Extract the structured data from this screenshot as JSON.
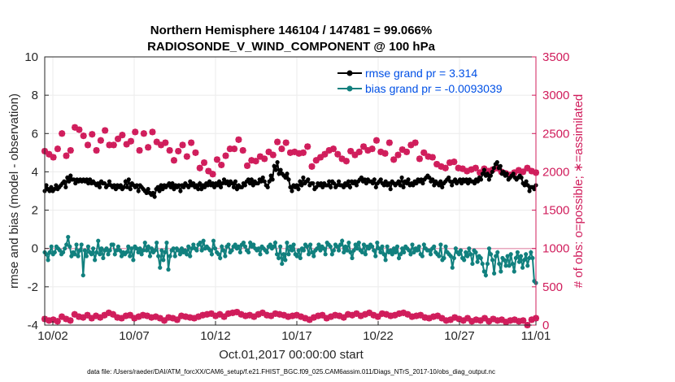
{
  "colors": {
    "rmse": "#000000",
    "bias": "#11807e",
    "obs": "#d01c5b",
    "legend_text": "#0050e6",
    "zero_line": "#e8a6bd"
  },
  "chart_data": {
    "type": "line",
    "title": "Northern Hemisphere 146104 / 147481 = 99.066%",
    "subtitle": "RADIOSONDE_V_WIND_COMPONENT @ 100 hPa",
    "xlabel": "Oct.01,2017 00:00:00 start",
    "ylabel": "rmse and bias (model - observation)",
    "y2label": "# of obs: o=possible; ∗=assimilated",
    "xlim": [
      0.5,
      30.7
    ],
    "ylim": [
      -4,
      10
    ],
    "y2lim": [
      0,
      3500
    ],
    "x_ticks": [
      {
        "value": 1,
        "label": "10/02"
      },
      {
        "value": 6,
        "label": "10/07"
      },
      {
        "value": 11,
        "label": "10/12"
      },
      {
        "value": 16,
        "label": "10/17"
      },
      {
        "value": 21,
        "label": "10/22"
      },
      {
        "value": 26,
        "label": "10/27"
      },
      {
        "value": 31,
        "label": "11/01"
      }
    ],
    "y_ticks": [
      -4,
      -2,
      0,
      2,
      4,
      6,
      8,
      10
    ],
    "y2_ticks": [
      0,
      500,
      1000,
      1500,
      2000,
      2500,
      3000,
      3500
    ],
    "legend": {
      "rmse": "rmse grand pr = 3.314",
      "bias": "bias grand pr = -0.0093039"
    },
    "footer": "data file: /Users/raeder/DAI/ATM_forcXX/CAM6_setup/f.e21.FHIST_BGC.f09_025.CAM6assim.011/Diags_NTrS_2017-10/obs_diag_output.nc",
    "x_start": 0.5,
    "x_step": 0.25,
    "series": [
      {
        "name": "rmse",
        "values": [
          3.0,
          3.3,
          3.1,
          3.0,
          3.2,
          3.0,
          3.1,
          3.3,
          3.1,
          3.2,
          3.3,
          3.4,
          3.5,
          3.2,
          3.7,
          3.5,
          3.8,
          3.6,
          3.6,
          3.4,
          3.6,
          3.5,
          3.6,
          3.5,
          3.6,
          3.5,
          3.6,
          3.4,
          3.6,
          3.4,
          3.5,
          3.4,
          3.3,
          3.4,
          3.2,
          3.5,
          3.4,
          3.4,
          3.2,
          3.3,
          3.5,
          3.3,
          3.2,
          3.3,
          3.1,
          3.3,
          3.2,
          3.3,
          3.1,
          3.2,
          3.5,
          3.2,
          3.6,
          3.1,
          3.4,
          3.3,
          3.2,
          3.3,
          3.0,
          3.3,
          3.2,
          3.1,
          3.0,
          2.9,
          3.1,
          2.9,
          2.8,
          2.9,
          2.7,
          3.1,
          3.2,
          3.0,
          3.3,
          3.1,
          3.3,
          3.2,
          3.3,
          3.4,
          3.2,
          3.4,
          3.1,
          3.3,
          3.2,
          3.3,
          3.0,
          3.3,
          3.2,
          3.4,
          3.3,
          3.2,
          3.5,
          3.3,
          3.4,
          3.2,
          3.3,
          3.1,
          3.4,
          3.1,
          3.3,
          3.2,
          3.4,
          3.3,
          3.5,
          3.3,
          3.4,
          3.2,
          3.4,
          3.3,
          3.5,
          3.2,
          3.4,
          3.6,
          3.4,
          3.5,
          3.3,
          3.5,
          3.4,
          3.2,
          3.5,
          3.1,
          3.3,
          3.2,
          3.2,
          3.4,
          3.3,
          3.5,
          3.6,
          3.4,
          3.6,
          3.3,
          3.5,
          3.4,
          3.4,
          3.6,
          3.5,
          3.7,
          3.5,
          3.3,
          3.2,
          3.5,
          3.8,
          3.6,
          4.3,
          4.1,
          4.5,
          3.9,
          4.1,
          3.9,
          3.8,
          3.7,
          3.9,
          3.6,
          3.2,
          3.0,
          3.3,
          3.2,
          3.3,
          3.1,
          3.5,
          3.3,
          3.7,
          3.4,
          3.5,
          3.6,
          3.3,
          3.4,
          3.4,
          3.1,
          3.2,
          3.4,
          3.3,
          3.4,
          3.2,
          3.4,
          3.3,
          3.3,
          3.5,
          3.2,
          3.5,
          3.4,
          3.2,
          3.3,
          3.5,
          3.3,
          3.3,
          3.2,
          3.4,
          3.3,
          3.5,
          3.2,
          3.5,
          3.4,
          3.5,
          3.3,
          3.5,
          3.6,
          3.7,
          3.5,
          3.6,
          3.4,
          3.6,
          3.5,
          3.5,
          3.4,
          3.6,
          3.2,
          3.4,
          3.5,
          3.6,
          3.4,
          3.3,
          3.5,
          3.3,
          3.4,
          3.1,
          3.5,
          3.4,
          3.3,
          3.4,
          3.5,
          3.3,
          3.7,
          3.2,
          3.5,
          3.4,
          3.6,
          3.3,
          3.4,
          3.3,
          3.5,
          3.4,
          3.6,
          3.5,
          3.6,
          3.4,
          3.6,
          3.7,
          3.8,
          3.7,
          3.5,
          3.6,
          3.3,
          3.5,
          3.4,
          3.3,
          3.5,
          3.2,
          3.4,
          3.5,
          3.6,
          3.7,
          3.5,
          3.3,
          3.5,
          3.6,
          3.4,
          3.5,
          3.6,
          3.4,
          3.6,
          3.5,
          3.6,
          3.4,
          3.6,
          3.5,
          3.5,
          3.4,
          3.6,
          3.5,
          3.7,
          3.6,
          3.9,
          4.1,
          3.8,
          3.9,
          3.6,
          3.8,
          4.0,
          4.2,
          4.4,
          4.5,
          4.2,
          4.3,
          3.9,
          4.0,
          3.8,
          3.9,
          3.6,
          3.7,
          3.8,
          3.9,
          3.7,
          3.6,
          3.7,
          3.8,
          3.7,
          3.4,
          3.3,
          3.5,
          3.3,
          3.0,
          3.2,
          3.2,
          3.1,
          3.3
        ]
      },
      {
        "name": "bias",
        "values": [
          -0.2,
          -0.3,
          -0.6,
          -0.2,
          0.1,
          -0.3,
          -0.2,
          0.1,
          0.0,
          -0.1,
          -0.3,
          -0.2,
          0.0,
          0.2,
          0.6,
          0.1,
          -0.4,
          -0.2,
          -0.3,
          0.2,
          -0.4,
          -0.1,
          0.2,
          -1.4,
          -0.1,
          -0.4,
          0.1,
          -0.2,
          -0.3,
          0.0,
          -0.6,
          -0.2,
          0.4,
          -0.3,
          0.0,
          -0.5,
          -0.1,
          0.0,
          -0.3,
          -0.1,
          0.2,
          0.2,
          -0.3,
          -0.1,
          0.1,
          -0.1,
          -0.4,
          -0.2,
          -0.3,
          -0.2,
          0.1,
          -0.4,
          0.0,
          -0.6,
          0.1,
          0.0,
          -0.2,
          0.0,
          -0.3,
          -0.1,
          0.3,
          -0.1,
          0.1,
          -0.4,
          0.0,
          -0.2,
          -0.1,
          0.3,
          -0.4,
          -1.0,
          -0.1,
          -0.6,
          -0.2,
          0.3,
          -1.1,
          -0.4,
          -0.1,
          0.0,
          -0.4,
          0.0,
          -0.1,
          -0.3,
          0.0,
          -0.2,
          -0.1,
          -0.3,
          0.1,
          -0.4,
          0.0,
          0.2,
          0.0,
          -0.1,
          0.2,
          0.3,
          -0.1,
          0.4,
          0.0,
          0.1,
          0.0,
          -0.1,
          -0.3,
          0.4,
          0.0,
          -0.2,
          -0.3,
          -0.5,
          0.1,
          -0.1,
          -0.4,
          0.1,
          0.2,
          -0.2,
          -0.1,
          0.1,
          0.2,
          0.0,
          0.1,
          -0.2,
          0.2,
          0.3,
          0.1,
          -0.1,
          -0.2,
          0.3,
          0.1,
          0.2,
          0.0,
          -0.1,
          0.0,
          -0.3,
          0.1,
          0.0,
          -0.1,
          -0.2,
          0.1,
          0.2,
          0.0,
          0.1,
          0.3,
          -0.3,
          -0.5,
          0.1,
          -0.8,
          -0.3,
          -0.6,
          0.3,
          -0.3,
          0.1,
          -0.1,
          0.2,
          -0.3,
          -0.4,
          -0.1,
          -0.5,
          0.0,
          -0.1,
          0.2,
          0.1,
          -0.3,
          0.2,
          -0.2,
          -0.4,
          -0.1,
          0.0,
          0.2,
          -0.1,
          0.1,
          0.0,
          -0.3,
          0.3,
          0.2,
          0.1,
          -0.3,
          -0.1,
          0.2,
          0.1,
          -0.1,
          0.2,
          0.4,
          -0.2,
          0.1,
          -0.1,
          0.3,
          -0.2,
          -0.5,
          -0.1,
          0.2,
          0.0,
          0.3,
          -0.1,
          -0.2,
          0.2,
          -0.3,
          0.1,
          0.0,
          0.2,
          0.1,
          -0.1,
          -0.4,
          0.3,
          0.0,
          -0.2,
          0.1,
          -0.3,
          -0.6,
          0.1,
          -0.2,
          -0.1,
          -0.3,
          0.0,
          -0.2,
          0.1,
          -0.5,
          -0.3,
          0.0,
          -0.2,
          0.1,
          0.0,
          -0.1,
          -0.3,
          0.2,
          -0.2,
          0.0,
          -0.1,
          0.1,
          -0.3,
          -0.4,
          0.2,
          0.0,
          -0.1,
          -0.1,
          -0.3,
          0.0,
          0.1,
          -0.2,
          -0.3,
          -0.4,
          0.2,
          -0.6,
          -0.5,
          0.1,
          -0.2,
          -0.3,
          -0.4,
          -1.0,
          -0.5,
          0.0,
          -0.2,
          -0.3,
          -0.1,
          -0.5,
          -0.6,
          -0.2,
          -0.4,
          0.0,
          -0.3,
          -0.8,
          -0.1,
          -0.2,
          -0.7,
          -0.4,
          -0.5,
          -0.8,
          -1.2,
          -1.4,
          -0.8,
          0.0,
          -0.3,
          -0.6,
          -1.3,
          -0.4,
          -0.2,
          -0.8,
          -1.2,
          -0.5,
          -0.6,
          -0.9,
          -0.4,
          -0.9,
          -0.3,
          -0.8,
          -1.2,
          -0.5,
          -0.2,
          -0.7,
          -0.4,
          -1.0,
          -0.6,
          -0.3,
          -0.9,
          -0.5,
          -0.2,
          -0.5,
          -1.7,
          -1.8
        ]
      },
      {
        "name": "possible",
        "values": [
          2270,
          2230,
          2190,
          2300,
          2500,
          2210,
          2280,
          2580,
          2550,
          2470,
          2350,
          2490,
          2280,
          2410,
          2540,
          2350,
          2350,
          2430,
          2480,
          2360,
          2400,
          2520,
          2280,
          2500,
          2320,
          2520,
          2390,
          2350,
          2380,
          2280,
          2150,
          2270,
          2350,
          2200,
          2380,
          2250,
          2050,
          2120,
          2010,
          1970,
          2160,
          2090,
          2210,
          2300,
          2300,
          2420,
          2280,
          2080,
          2150,
          2140,
          2200,
          2170,
          2260,
          2220,
          2390,
          2300,
          2380,
          2250,
          2260,
          2240,
          2250,
          2330,
          2070,
          2150,
          2190,
          2230,
          2280,
          2300,
          2230,
          2170,
          2140,
          2270,
          2220,
          2260,
          2330,
          2280,
          2300,
          2410,
          2260,
          2240,
          2380,
          2160,
          2220,
          2290,
          2260,
          2350,
          2380,
          2170,
          2250,
          2200,
          2190,
          2100,
          2070,
          2050,
          2120,
          2130,
          2050,
          2040,
          2010,
          2030,
          2050,
          1990,
          2040,
          2010,
          2030,
          2050,
          2000,
          1980,
          1960,
          1990,
          2020,
          2000,
          2050,
          2010,
          1990
        ]
      },
      {
        "name": "assimilated",
        "values": [
          80,
          60,
          70,
          50,
          110,
          80,
          60,
          140,
          110,
          100,
          130,
          90,
          120,
          100,
          130,
          160,
          140,
          100,
          90,
          120,
          130,
          90,
          110,
          130,
          120,
          100,
          110,
          90,
          60,
          100,
          90,
          70,
          120,
          110,
          100,
          90,
          110,
          130,
          140,
          150,
          120,
          140,
          110,
          150,
          160,
          170,
          140,
          120,
          130,
          110,
          140,
          160,
          130,
          120,
          150,
          140,
          130,
          110,
          120,
          130,
          110,
          90,
          70,
          100,
          120,
          130,
          90,
          110,
          130,
          120,
          100,
          140,
          130,
          150,
          120,
          140,
          160,
          130,
          110,
          150,
          140,
          120,
          130,
          150,
          160,
          140,
          110,
          120,
          130,
          100,
          90,
          110,
          120,
          90,
          60,
          70,
          100,
          80,
          60,
          90,
          50,
          70,
          60,
          90,
          50,
          80,
          60,
          70,
          40,
          60,
          70,
          50,
          60,
          0,
          70,
          90
        ]
      }
    ]
  }
}
